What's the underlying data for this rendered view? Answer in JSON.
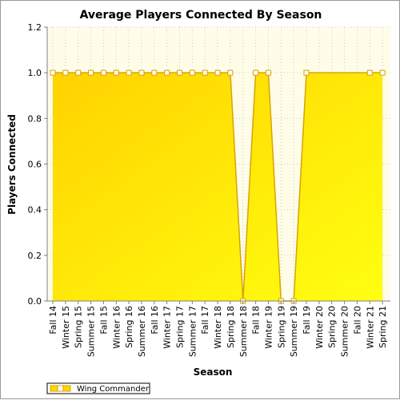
{
  "chart_data": {
    "type": "area",
    "title": "Average Players Connected By Season",
    "xlabel": "Season",
    "ylabel": "Players Connected",
    "ylim": [
      0,
      1.2
    ],
    "y_ticks": [
      "0.0",
      "0.2",
      "0.4",
      "0.6",
      "0.8",
      "1.0",
      "1.2"
    ],
    "categories": [
      "Fall 14",
      "Winter 15",
      "Spring 15",
      "Summer 15",
      "Fall 15",
      "Winter 16",
      "Spring 16",
      "Summer 16",
      "Fall 16",
      "Winter 17",
      "Spring 17",
      "Summer 17",
      "Fall 17",
      "Winter 18",
      "Spring 18",
      "Summer 18",
      "Fall 18",
      "Winter 19",
      "Spring 19",
      "Summer 19",
      "Fall 19",
      "Winter 20",
      "Spring 20",
      "Summer 20",
      "Fall 20",
      "Winter 21",
      "Spring 21"
    ],
    "series": [
      {
        "name": "Wing Commander",
        "values": [
          1.0,
          1.0,
          1.0,
          1.0,
          1.0,
          1.0,
          1.0,
          1.0,
          1.0,
          1.0,
          1.0,
          1.0,
          1.0,
          1.0,
          1.0,
          0.0,
          1.0,
          1.0,
          0.0,
          0.0,
          1.0,
          null,
          null,
          null,
          null,
          1.0,
          1.0
        ],
        "markers": [
          true,
          true,
          true,
          true,
          true,
          true,
          true,
          true,
          true,
          true,
          true,
          true,
          true,
          true,
          true,
          true,
          true,
          true,
          true,
          true,
          true,
          false,
          false,
          false,
          false,
          true,
          true
        ],
        "color": "#ffd700",
        "line_color": "#d9a300"
      }
    ],
    "grid": true,
    "legend": "bottom-left",
    "plot_background": "#fffde8"
  }
}
